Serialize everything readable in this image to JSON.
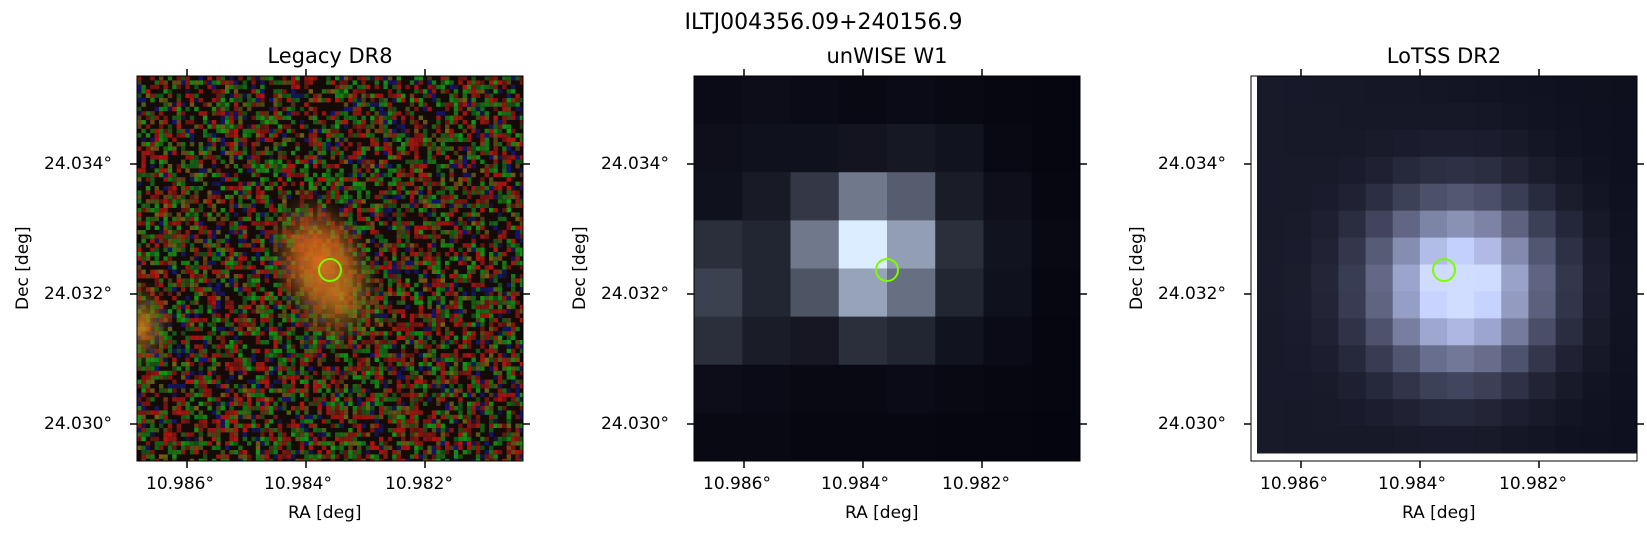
{
  "figure": {
    "suptitle": "ILTJ004356.09+240156.9",
    "marker_color": "#7CFC00"
  },
  "panels": [
    {
      "title": "Legacy DR8",
      "xlabel": "RA [deg]",
      "ylabel": "Dec [deg]",
      "xticks": [
        "10.986°",
        "10.984°",
        "10.982°"
      ],
      "yticks": [
        "24.034°",
        "24.032°",
        "24.030°"
      ]
    },
    {
      "title": "unWISE W1",
      "xlabel": "RA [deg]",
      "ylabel": "Dec [deg]",
      "xticks": [
        "10.986°",
        "10.984°",
        "10.982°"
      ],
      "yticks": [
        "24.034°",
        "24.032°",
        "24.030°"
      ]
    },
    {
      "title": "LoTSS DR2",
      "xlabel": "RA [deg]",
      "ylabel": "Dec [deg]",
      "xticks": [
        "10.986°",
        "10.984°",
        "10.982°"
      ],
      "yticks": [
        "24.034°",
        "24.032°",
        "24.030°"
      ]
    }
  ]
}
